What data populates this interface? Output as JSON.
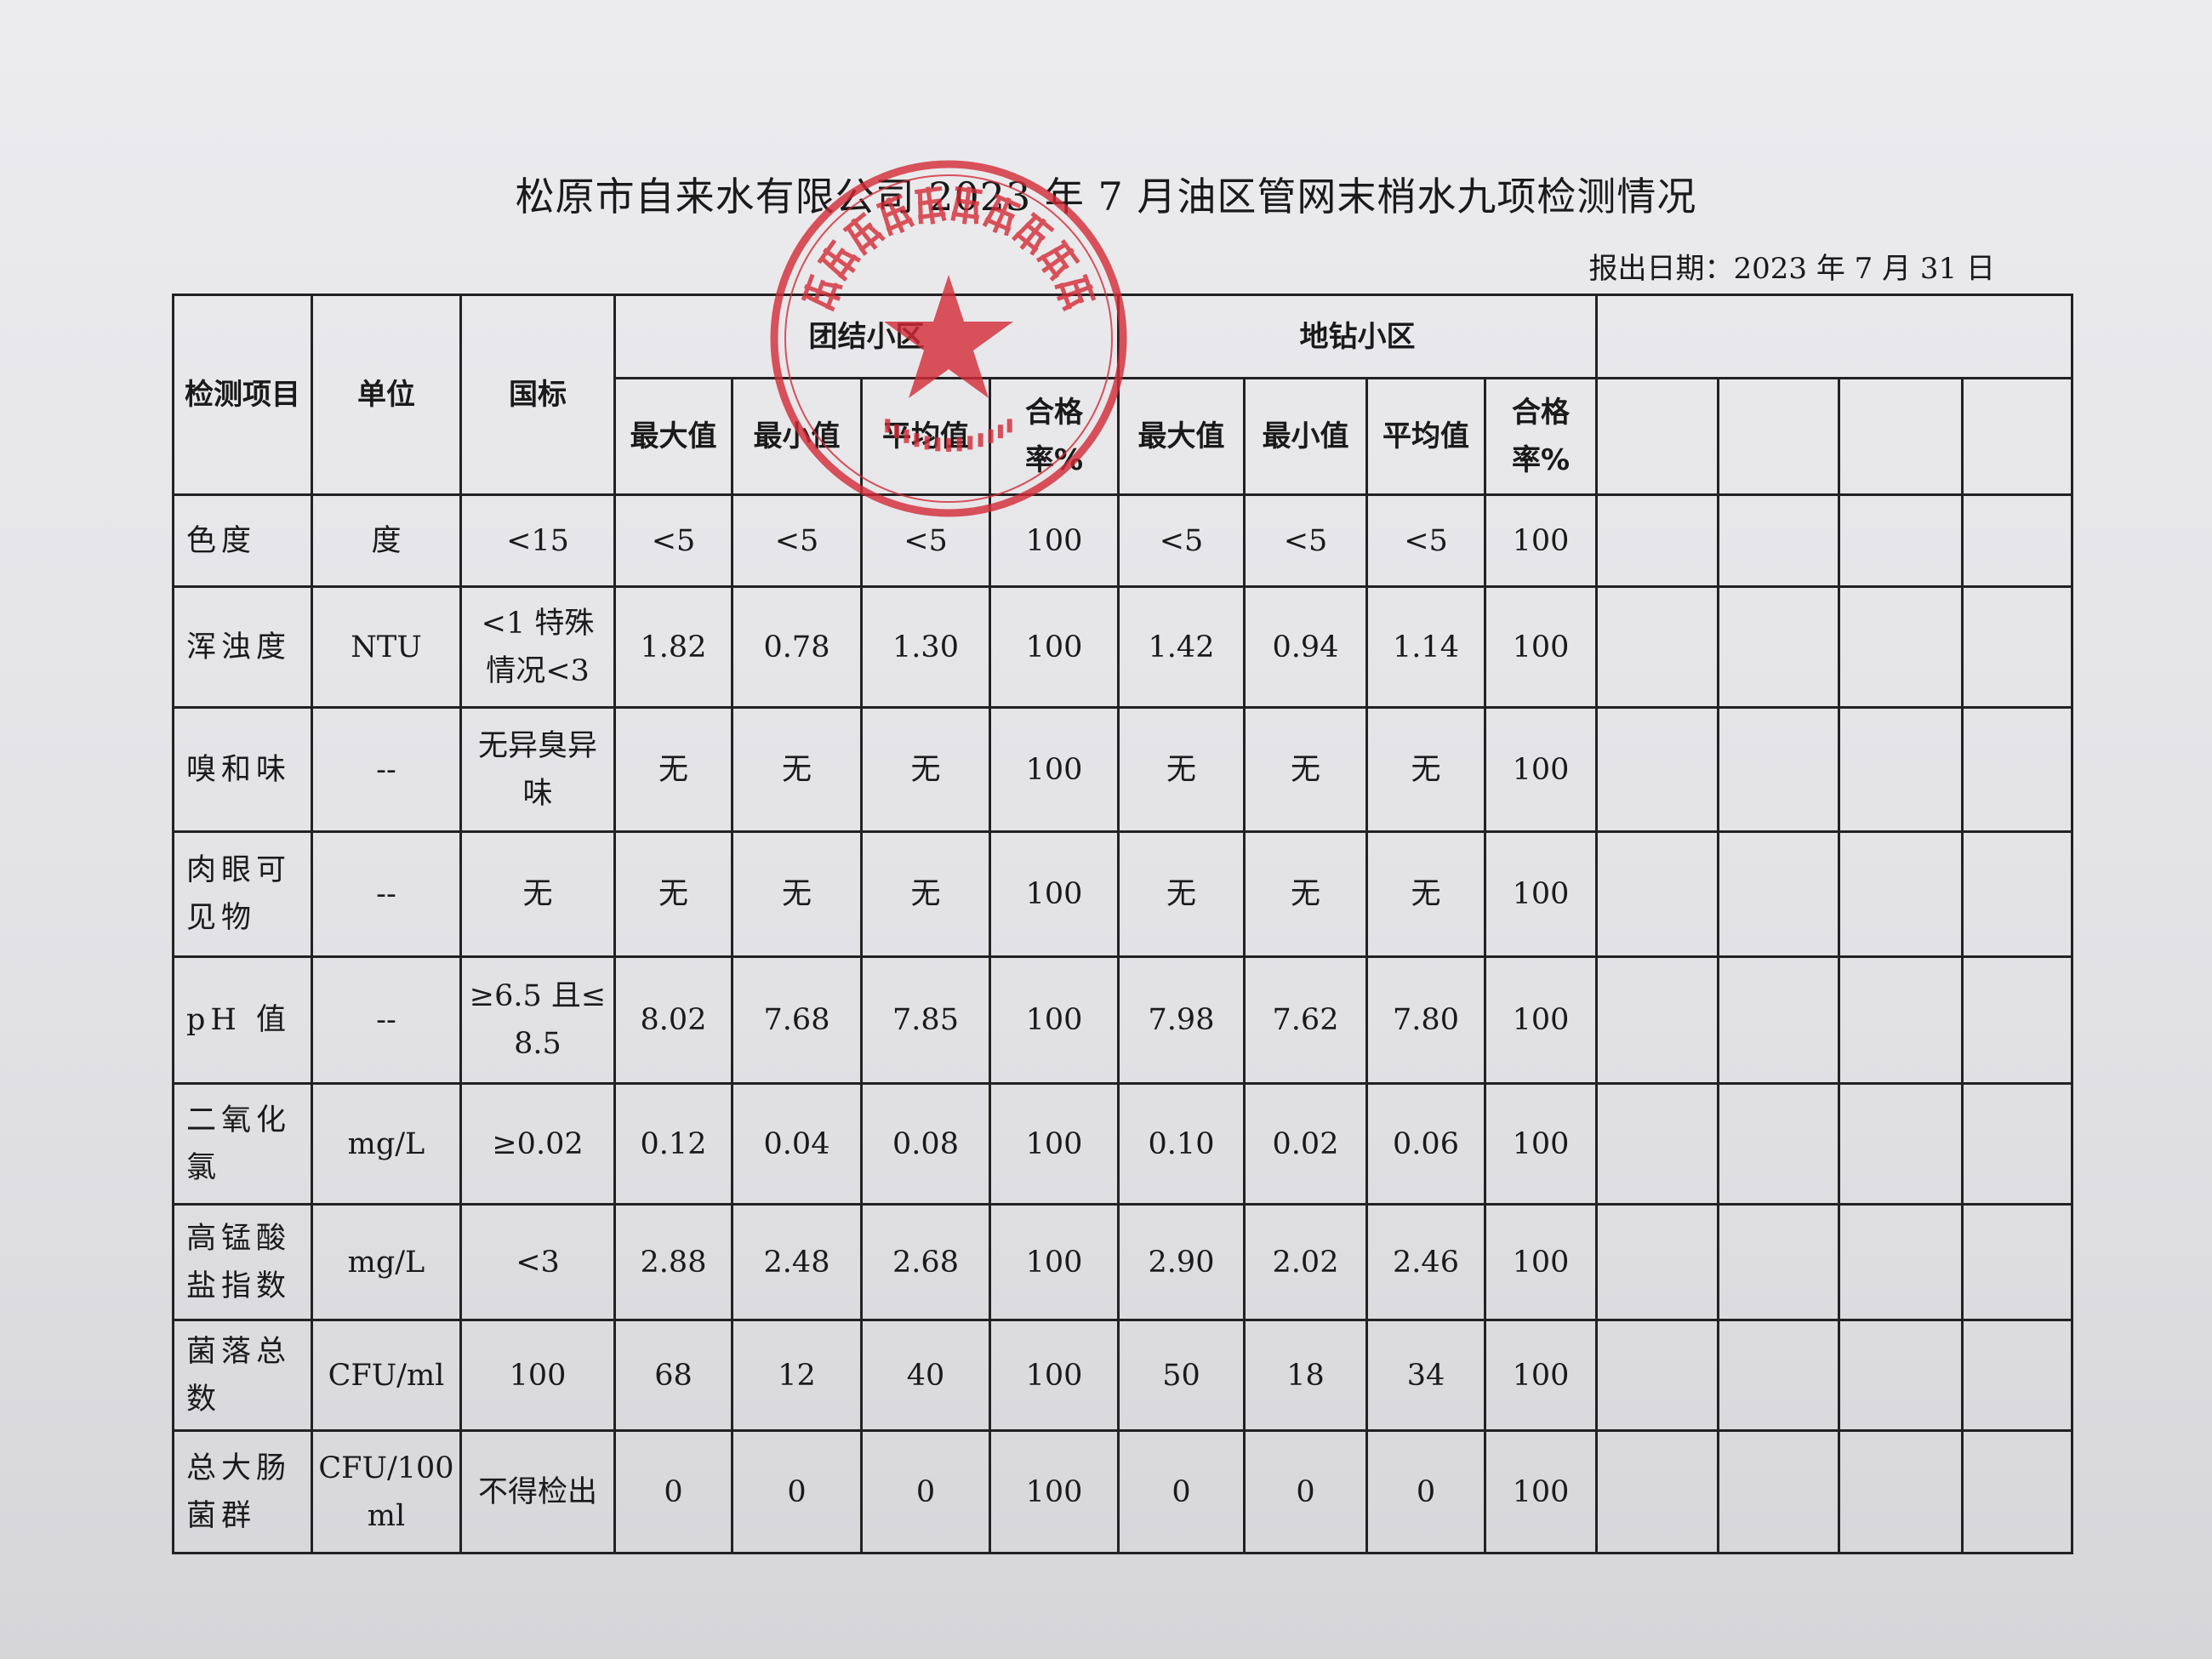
{
  "title": "松原市自来水有限公司 2023 年 7 月油区管网末梢水九项检测情况",
  "report_date": "报出日期：2023 年 7 月 31 日",
  "seal": {
    "text": "松原市自来水有限公司",
    "number": "2207031213700",
    "color": "#d42a35"
  },
  "table": {
    "headers": {
      "item": "检测项目",
      "unit": "单位",
      "standard": "国标",
      "group1": "团结小区",
      "group2": "地钻小区",
      "sub": [
        "最大值",
        "最小值",
        "平均值",
        "合格率%",
        "最大值",
        "最小值",
        "平均值",
        "合格率%"
      ]
    },
    "rows": [
      {
        "item": "色度",
        "unit": "度",
        "standard": "<15",
        "values": [
          "<5",
          "<5",
          "<5",
          "100",
          "<5",
          "<5",
          "<5",
          "100"
        ]
      },
      {
        "item": "浑浊度",
        "unit": "NTU",
        "standard": "<1 特殊情况<3",
        "values": [
          "1.82",
          "0.78",
          "1.30",
          "100",
          "1.42",
          "0.94",
          "1.14",
          "100"
        ]
      },
      {
        "item": "嗅和味",
        "unit": "--",
        "standard": "无异臭异味",
        "values": [
          "无",
          "无",
          "无",
          "100",
          "无",
          "无",
          "无",
          "100"
        ]
      },
      {
        "item": "肉眼可见物",
        "unit": "--",
        "standard": "无",
        "values": [
          "无",
          "无",
          "无",
          "100",
          "无",
          "无",
          "无",
          "100"
        ]
      },
      {
        "item": "pH 值",
        "unit": "--",
        "standard": "≥6.5 且≤8.5",
        "values": [
          "8.02",
          "7.68",
          "7.85",
          "100",
          "7.98",
          "7.62",
          "7.80",
          "100"
        ]
      },
      {
        "item": "二氧化氯",
        "unit": "mg/L",
        "standard": "≥0.02",
        "values": [
          "0.12",
          "0.04",
          "0.08",
          "100",
          "0.10",
          "0.02",
          "0.06",
          "100"
        ]
      },
      {
        "item": "高锰酸盐指数",
        "unit": "mg/L",
        "standard": "<3",
        "values": [
          "2.88",
          "2.48",
          "2.68",
          "100",
          "2.90",
          "2.02",
          "2.46",
          "100"
        ]
      },
      {
        "item": "菌落总数",
        "unit": "CFU/ml",
        "standard": "100",
        "values": [
          "68",
          "12",
          "40",
          "100",
          "50",
          "18",
          "34",
          "100"
        ]
      },
      {
        "item": "总大肠菌群",
        "unit": "CFU/100ml",
        "standard": "不得检出",
        "values": [
          "0",
          "0",
          "0",
          "100",
          "0",
          "0",
          "0",
          "100"
        ]
      }
    ]
  }
}
